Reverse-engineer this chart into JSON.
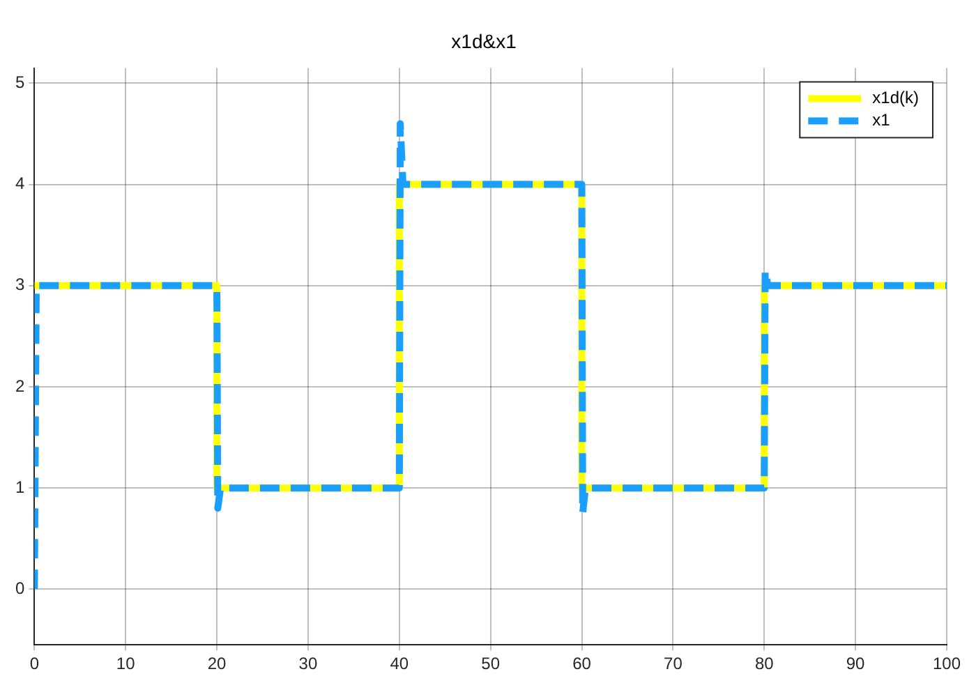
{
  "chart_data": {
    "type": "line",
    "title": "x1d&x1",
    "xlim": [
      0,
      100
    ],
    "xticks": [
      0,
      10,
      20,
      30,
      40,
      50,
      60,
      70,
      80,
      90,
      100
    ],
    "ylim": [
      -0.55,
      5.15
    ],
    "yticks": [
      0,
      1,
      2,
      3,
      4,
      5
    ],
    "grid": true,
    "legend": "top right",
    "marker": "none",
    "series": [
      {
        "name": "x1d(k)",
        "type": "step",
        "color": "#ffff00",
        "line_style": "solid",
        "x": [
          0,
          20,
          40,
          60,
          80,
          100
        ],
        "values": [
          3,
          1,
          4,
          1,
          3,
          3
        ]
      },
      {
        "name": "x1",
        "type": "line",
        "color": "#1a9fff",
        "line_style": "dashed",
        "x": [
          0,
          0.2,
          20,
          20.1,
          20.4,
          40,
          40.1,
          40.4,
          60,
          60.1,
          60.4,
          80,
          80.1,
          80.4,
          100
        ],
        "values": [
          0,
          3,
          3,
          0.8,
          1,
          1,
          4.6,
          4,
          4,
          0.75,
          1,
          1,
          3.15,
          3,
          3
        ]
      }
    ]
  }
}
